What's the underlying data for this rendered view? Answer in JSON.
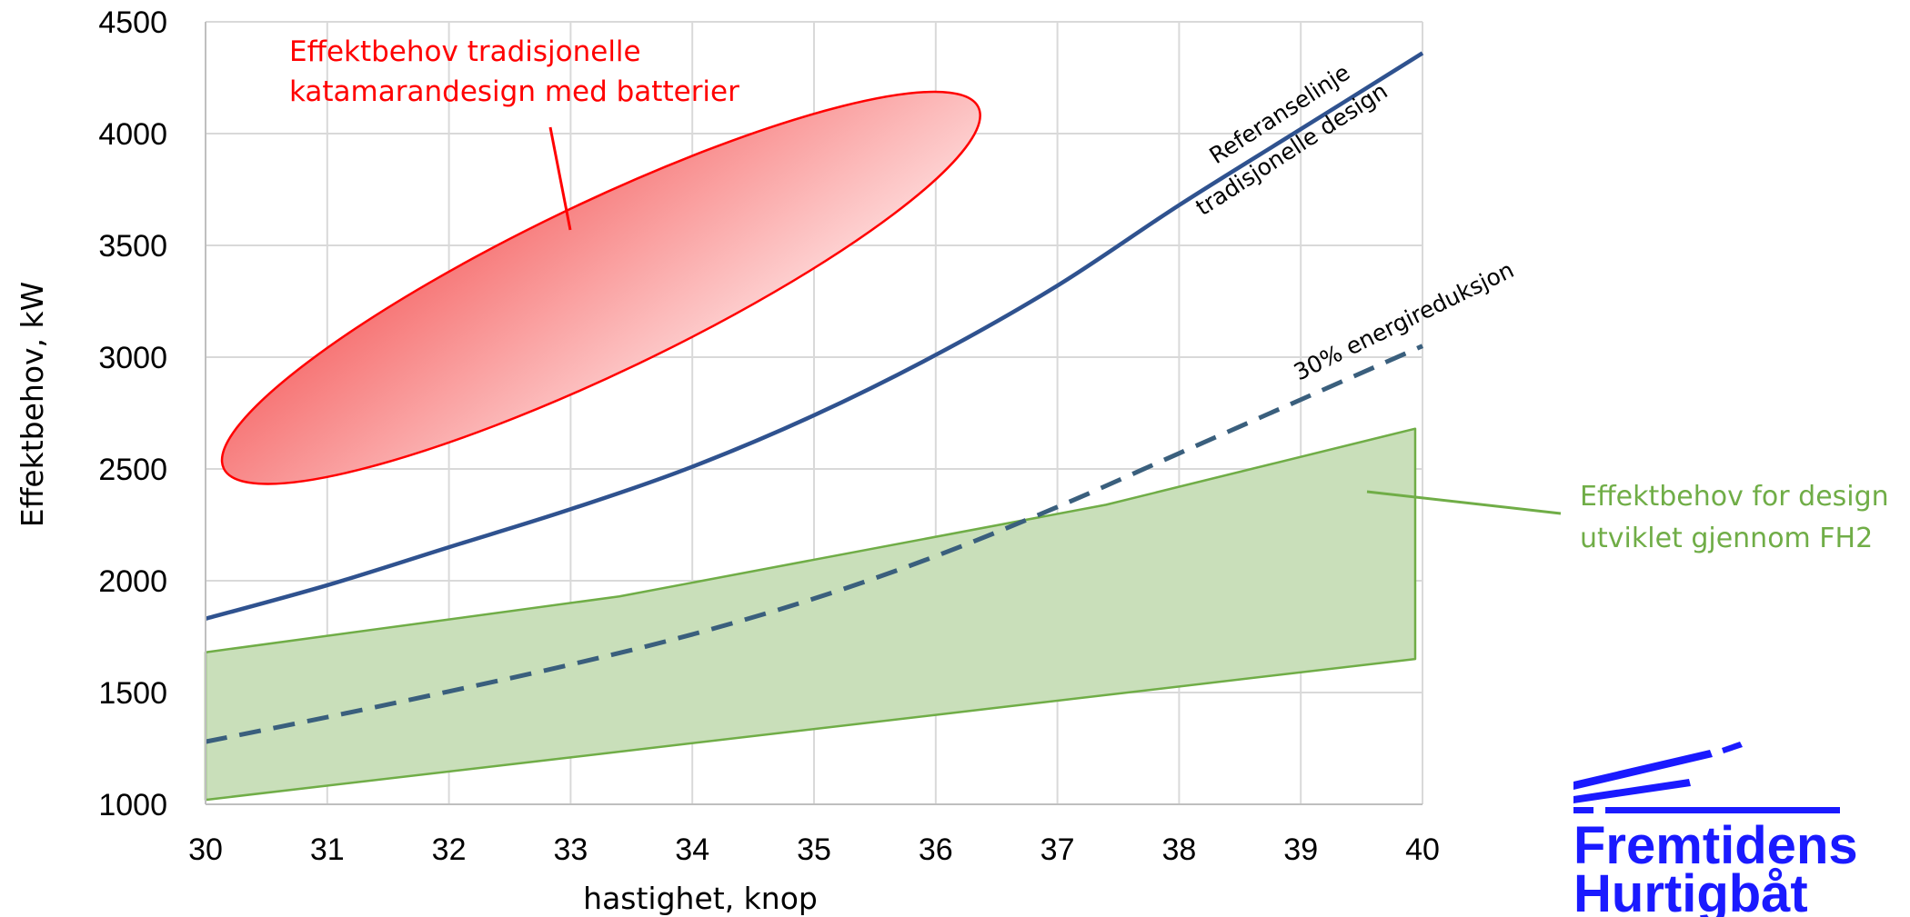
{
  "chart_data": {
    "type": "line",
    "xlabel": "hastighet, knop",
    "ylabel": "Effektbehov, kW",
    "xlim": [
      30,
      40
    ],
    "ylim": [
      1000,
      4500
    ],
    "x_ticks": [
      30,
      31,
      32,
      33,
      34,
      35,
      36,
      37,
      38,
      39,
      40
    ],
    "y_ticks": [
      1000,
      1500,
      2000,
      2500,
      3000,
      3500,
      4000,
      4500
    ],
    "grid": true,
    "series": [
      {
        "name": "Referanselinje tradisjonelle design",
        "style": "solid",
        "color": "#2f528f",
        "x": [
          30,
          31,
          32,
          33,
          34,
          35,
          36,
          37,
          38,
          39,
          40
        ],
        "y": [
          1830,
          1980,
          2150,
          2320,
          2510,
          2740,
          3010,
          3320,
          3680,
          4020,
          4360
        ]
      },
      {
        "name": "30% energireduksjon",
        "style": "dashed",
        "color": "#3a5f7d",
        "x": [
          30,
          31,
          32,
          33,
          34,
          35,
          36,
          37,
          38,
          39,
          40
        ],
        "y": [
          1280,
          1390,
          1505,
          1625,
          1760,
          1920,
          2110,
          2330,
          2570,
          2810,
          3050
        ]
      }
    ],
    "regions": [
      {
        "name": "Effektbehov for design utviklet gjennom FH2",
        "shape": "band",
        "color": "#70ad47",
        "fill": "#c9dfba",
        "x": [
          30,
          33.4,
          37.4,
          39.94
        ],
        "upper": [
          1680,
          1930,
          2340,
          2680
        ],
        "lower_x": [
          30,
          33,
          36,
          39.94
        ],
        "lower": [
          1020,
          1210,
          1400,
          1650
        ]
      },
      {
        "name": "Effektbehov tradisjonelle katamarandesign med batterier",
        "shape": "ellipse",
        "color": "#ff0000",
        "center": [
          33.25,
          3310
        ],
        "extent_x": [
          30.4,
          36.25
        ],
        "extent_y": [
          2330,
          4140
        ]
      }
    ],
    "annotations": [
      {
        "text_lines": [
          "Effektbehov tradisjonelle",
          "katamarandesign med batterier"
        ],
        "color": "#ff0000"
      },
      {
        "text_lines": [
          "Referanselinje",
          "tradisjonelle design"
        ],
        "color": "#000000"
      },
      {
        "text_lines": [
          "30% energireduksjon"
        ],
        "color": "#000000"
      },
      {
        "text_lines": [
          "Effektbehov for design",
          "utviklet gjennom FH2"
        ],
        "color": "#70ad47"
      }
    ]
  },
  "labels": {
    "red_anno_line1": "Effektbehov tradisjonelle",
    "red_anno_line2": "katamarandesign med batterier",
    "ref_line1": "Referanselinje",
    "ref_line2": "tradisjonelle design",
    "reduction": "30% energireduksjon",
    "green_anno_line1": "Effektbehov for design",
    "green_anno_line2": "utviklet gjennom FH2"
  },
  "logo": {
    "line1": "Fremtidens",
    "line2": "Hurtigbåt",
    "color": "#1a1aff"
  },
  "colors": {
    "reference": "#2f528f",
    "reduction": "#3a5f7d",
    "band_fill": "#c9dfba",
    "band_stroke": "#70ad47",
    "ellipse": "#ff0000",
    "grid": "#d9d9d9"
  }
}
